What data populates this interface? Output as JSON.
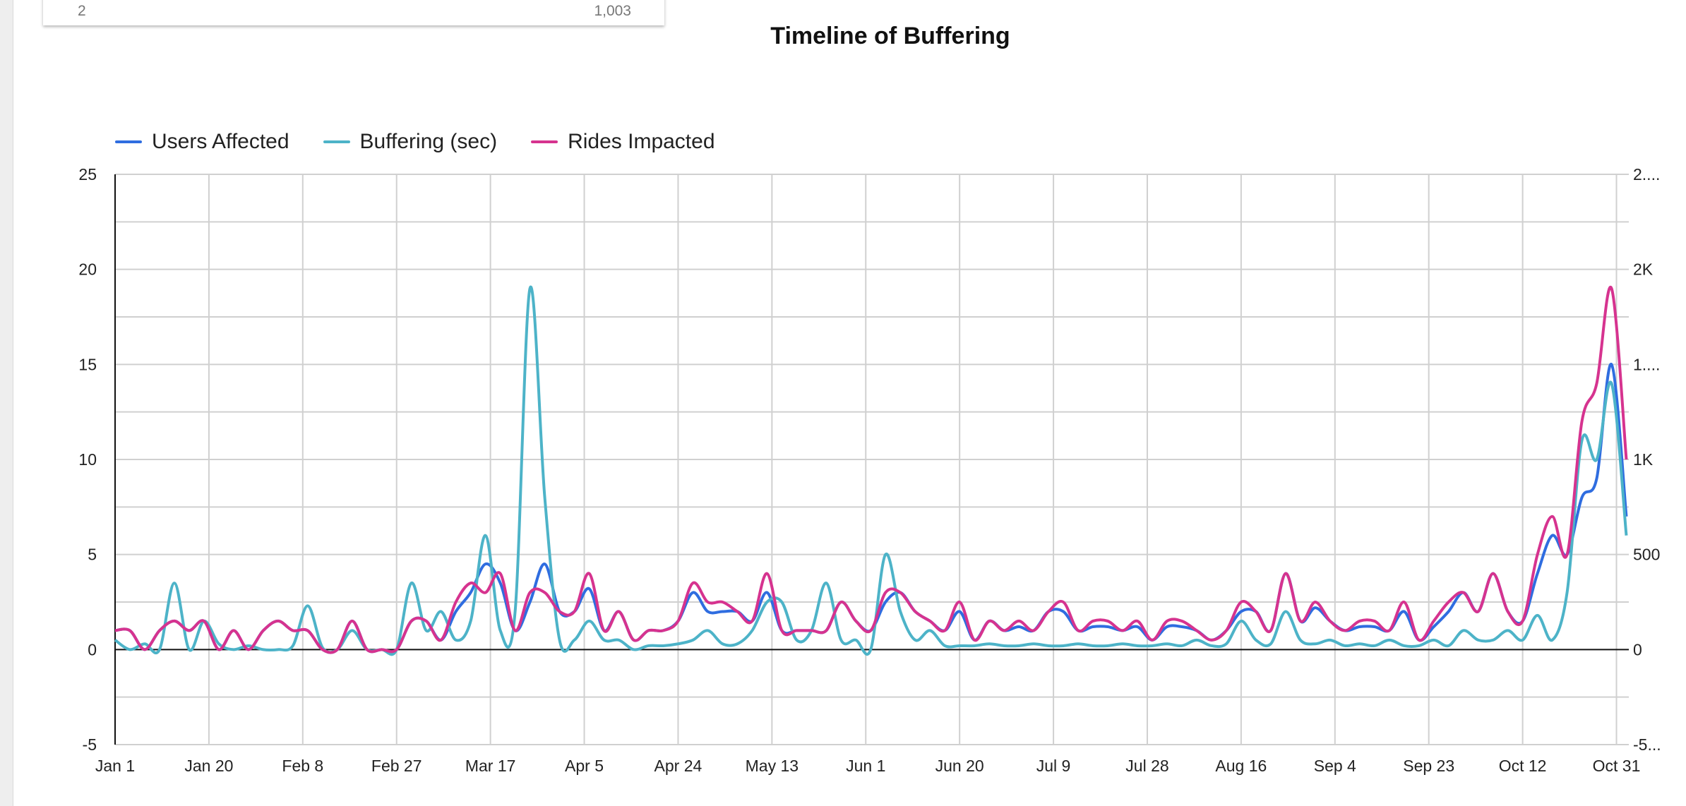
{
  "top_card": {
    "row_label": "2",
    "row_value": "1,003"
  },
  "chart_data": {
    "type": "line",
    "title": "Timeline of Buffering",
    "xlabel": "",
    "ylabel": "",
    "y_left_ticks": [
      "25",
      "20",
      "15",
      "10",
      "5",
      "0",
      "-5"
    ],
    "y_left_range": [
      -5,
      25
    ],
    "y_right_ticks": [
      "2....",
      "2K",
      "1....",
      "1K",
      "500",
      "0",
      "-5..."
    ],
    "y_right_range": [
      -500,
      2500
    ],
    "x_ticks": [
      "Jan 1",
      "Jan 20",
      "Feb 8",
      "Feb 27",
      "Mar 17",
      "Apr 5",
      "Apr 24",
      "May 13",
      "Jun 1",
      "Jun 20",
      "Jul 9",
      "Jul 28",
      "Aug 16",
      "Sep 4",
      "Sep 23",
      "Oct 12",
      "Oct 31"
    ],
    "grid": true,
    "legend_position": "top-left",
    "x": [
      "Jan 1",
      "Jan 4",
      "Jan 7",
      "Jan 10",
      "Jan 13",
      "Jan 16",
      "Jan 19",
      "Jan 22",
      "Jan 25",
      "Jan 28",
      "Jan 31",
      "Feb 3",
      "Feb 6",
      "Feb 9",
      "Feb 12",
      "Feb 15",
      "Feb 18",
      "Feb 21",
      "Feb 24",
      "Feb 27",
      "Mar 1",
      "Mar 4",
      "Mar 7",
      "Mar 10",
      "Mar 13",
      "Mar 16",
      "Mar 19",
      "Mar 22",
      "Mar 25",
      "Mar 28",
      "Mar 31",
      "Apr 3",
      "Apr 6",
      "Apr 9",
      "Apr 12",
      "Apr 15",
      "Apr 18",
      "Apr 21",
      "Apr 24",
      "Apr 27",
      "Apr 30",
      "May 3",
      "May 6",
      "May 9",
      "May 12",
      "May 15",
      "May 18",
      "May 21",
      "May 24",
      "May 27",
      "May 30",
      "Jun 2",
      "Jun 5",
      "Jun 8",
      "Jun 11",
      "Jun 14",
      "Jun 17",
      "Jun 20",
      "Jun 23",
      "Jun 26",
      "Jun 29",
      "Jul 2",
      "Jul 5",
      "Jul 8",
      "Jul 11",
      "Jul 14",
      "Jul 17",
      "Jul 20",
      "Jul 23",
      "Jul 26",
      "Jul 29",
      "Aug 1",
      "Aug 4",
      "Aug 7",
      "Aug 10",
      "Aug 13",
      "Aug 16",
      "Aug 19",
      "Aug 22",
      "Aug 25",
      "Aug 28",
      "Aug 31",
      "Sep 3",
      "Sep 6",
      "Sep 9",
      "Sep 12",
      "Sep 15",
      "Sep 18",
      "Sep 21",
      "Sep 24",
      "Sep 27",
      "Sep 30",
      "Oct 3",
      "Oct 6",
      "Oct 9",
      "Oct 12",
      "Oct 15",
      "Oct 18",
      "Oct 21",
      "Oct 24",
      "Oct 27",
      "Oct 30",
      "Nov 2"
    ],
    "series": [
      {
        "name": "Users Affected",
        "axis": "left",
        "color": "#2f6de0",
        "values": [
          1,
          1,
          0,
          1,
          1.5,
          1,
          1.5,
          0,
          1,
          0,
          1,
          1.5,
          1,
          1,
          0,
          0,
          1.5,
          0,
          0,
          0,
          1.5,
          1.5,
          0.5,
          2,
          3,
          4.5,
          3.5,
          1,
          2.5,
          4.5,
          2,
          2,
          3.2,
          1,
          2,
          0.5,
          1,
          1,
          1.5,
          3,
          2,
          2,
          2,
          1.5,
          3,
          1,
          1,
          1,
          1,
          2.5,
          1.5,
          1,
          2.5,
          3,
          2,
          1.5,
          1,
          2,
          0.5,
          1.5,
          1,
          1.2,
          1,
          2,
          2,
          1,
          1.2,
          1.2,
          1,
          1.2,
          0.5,
          1.2,
          1.2,
          1,
          0.5,
          1,
          2,
          2,
          1,
          4,
          1.5,
          2.2,
          1.5,
          1,
          1.2,
          1.2,
          1,
          2,
          0.5,
          1.2,
          2,
          3,
          2,
          4,
          2,
          1.5,
          4,
          6,
          5,
          8,
          9,
          15,
          7
        ]
      },
      {
        "name": "Buffering (sec)",
        "axis": "left",
        "color": "#4db3c8",
        "values": [
          0.5,
          0,
          0.3,
          0,
          3.5,
          0,
          1.5,
          0.3,
          0,
          0.2,
          0,
          0,
          0.2,
          2.3,
          0.1,
          0,
          1,
          0,
          0,
          0,
          3.5,
          1,
          2,
          0.5,
          1.5,
          6,
          1,
          2,
          19,
          8,
          0.5,
          0.5,
          1.5,
          0.5,
          0.5,
          0,
          0.2,
          0.2,
          0.3,
          0.5,
          1,
          0.3,
          0.3,
          1,
          2.5,
          2.5,
          0.5,
          1,
          3.5,
          0.5,
          0.5,
          0,
          5,
          2,
          0.5,
          1,
          0.2,
          0.2,
          0.2,
          0.3,
          0.2,
          0.2,
          0.3,
          0.2,
          0.2,
          0.3,
          0.2,
          0.2,
          0.3,
          0.2,
          0.2,
          0.3,
          0.2,
          0.5,
          0.2,
          0.3,
          1.5,
          0.5,
          0.3,
          2,
          0.5,
          0.3,
          0.5,
          0.2,
          0.3,
          0.2,
          0.5,
          0.2,
          0.2,
          0.5,
          0.2,
          1,
          0.5,
          0.5,
          1,
          0.5,
          1.8,
          0.5,
          3,
          11,
          10,
          14,
          6
        ]
      },
      {
        "name": "Rides Impacted",
        "axis": "right",
        "color": "#d6338f",
        "values": [
          100,
          100,
          0,
          100,
          150,
          100,
          150,
          0,
          100,
          0,
          100,
          150,
          100,
          100,
          0,
          0,
          150,
          0,
          0,
          0,
          150,
          150,
          50,
          250,
          350,
          300,
          400,
          100,
          300,
          300,
          200,
          200,
          400,
          100,
          200,
          50,
          100,
          100,
          150,
          350,
          250,
          250,
          200,
          150,
          400,
          100,
          100,
          100,
          100,
          250,
          150,
          100,
          300,
          300,
          200,
          150,
          100,
          250,
          50,
          150,
          100,
          150,
          100,
          200,
          250,
          100,
          150,
          150,
          100,
          150,
          50,
          150,
          150,
          100,
          50,
          100,
          250,
          200,
          100,
          400,
          150,
          250,
          150,
          100,
          150,
          150,
          100,
          250,
          50,
          150,
          250,
          300,
          200,
          400,
          200,
          150,
          500,
          700,
          500,
          1200,
          1400,
          1900,
          1000
        ]
      }
    ]
  }
}
